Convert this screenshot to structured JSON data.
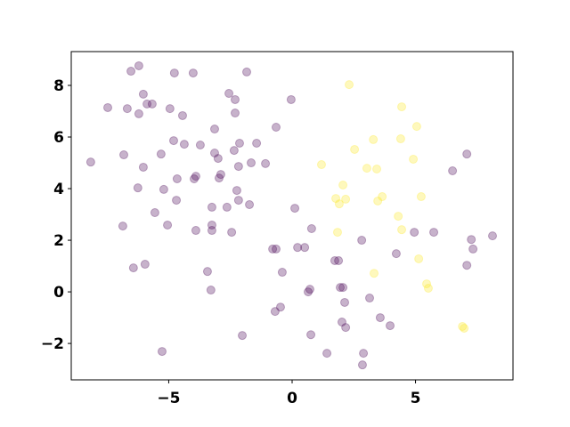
{
  "chart_data": {
    "type": "scatter",
    "xlim": [
      -8.95,
      8.95
    ],
    "ylim": [
      -3.41,
      9.31
    ],
    "xticks": [
      {
        "value": -5,
        "label": "−5"
      },
      0,
      5
    ],
    "yticks": [
      {
        "value": -2,
        "label": "−2"
      },
      0,
      2,
      4,
      6,
      8
    ],
    "alpha": 0.3,
    "series": [
      {
        "color": "#440154",
        "x": [
          -8.16,
          -7.47,
          -6.53,
          -6.21,
          -6.68,
          -6.03,
          -5.88,
          -5.67,
          -6.21,
          -6.82,
          -6.03,
          -6.25,
          -6.86,
          -5.56,
          -5.31,
          -5.2,
          -5.05,
          -4.95,
          -4.77,
          -4.01,
          -4.44,
          -4.8,
          -4.37,
          -4.66,
          -4.69,
          -3.97,
          -3.9,
          -3.9,
          -3.72,
          -3.14,
          -3.14,
          -3.0,
          -2.89,
          -2.96,
          -3.25,
          -3.25,
          -3.25,
          -3.43,
          -3.29,
          -6.43,
          -5.96,
          -5.27,
          -2.56,
          -2.31,
          -1.84,
          -2.31,
          -2.35,
          -2.13,
          -1.44,
          -1.66,
          -1.08,
          -2.17,
          -2.24,
          -2.17,
          -2.64,
          -2.45,
          -1.73,
          -0.65,
          -0.04,
          -2.02,
          -0.79,
          -0.65,
          -0.4,
          -0.69,
          -0.47,
          0.11,
          0.22,
          0.51,
          0.79,
          0.65,
          0.72,
          0.76,
          1.41,
          1.73,
          1.88,
          1.95,
          2.06,
          2.13,
          2.02,
          2.17,
          2.82,
          2.89,
          2.85,
          3.14,
          3.57,
          3.97,
          4.22,
          4.95,
          5.74,
          6.5,
          7.08,
          7.26,
          7.33,
          7.08,
          8.12
        ],
        "values": [
          5.03,
          7.14,
          8.55,
          8.76,
          7.1,
          7.66,
          7.28,
          7.28,
          6.9,
          5.31,
          4.83,
          4.03,
          2.55,
          3.07,
          5.34,
          3.97,
          2.59,
          7.1,
          8.48,
          8.48,
          6.83,
          5.86,
          5.72,
          4.38,
          3.55,
          4.38,
          4.48,
          2.38,
          5.69,
          6.31,
          5.38,
          5.17,
          4.55,
          4.41,
          3.28,
          2.59,
          2.38,
          0.79,
          0.07,
          0.93,
          1.07,
          -2.31,
          7.69,
          7.45,
          8.52,
          6.93,
          5.48,
          5.76,
          5.76,
          5.0,
          4.97,
          4.86,
          3.93,
          3.55,
          3.28,
          2.31,
          3.38,
          6.38,
          7.45,
          -1.69,
          1.66,
          1.66,
          0.76,
          -0.76,
          -0.59,
          3.24,
          1.72,
          1.72,
          2.45,
          0.0,
          0.1,
          -1.66,
          -2.38,
          1.21,
          1.21,
          0.17,
          0.17,
          -0.41,
          -1.17,
          -1.38,
          2.0,
          -2.38,
          -2.83,
          -0.24,
          -1.0,
          -1.31,
          1.48,
          2.31,
          2.31,
          4.69,
          5.34,
          2.03,
          1.66,
          1.03,
          2.17
        ]
      },
      {
        "color": "#fde725",
        "x": [
          2.31,
          4.44,
          5.05,
          3.29,
          4.4,
          2.53,
          1.19,
          3.03,
          3.43,
          4.91,
          2.06,
          1.77,
          1.91,
          2.17,
          3.65,
          3.47,
          5.23,
          4.3,
          4.44,
          1.84,
          5.13,
          3.32,
          5.45,
          5.52,
          6.9,
          6.97
        ],
        "values": [
          8.03,
          7.17,
          6.41,
          5.9,
          5.93,
          5.52,
          4.93,
          4.79,
          4.76,
          5.14,
          4.14,
          3.62,
          3.41,
          3.59,
          3.69,
          3.52,
          3.69,
          2.93,
          2.41,
          2.31,
          1.28,
          0.72,
          0.31,
          0.14,
          -1.34,
          -1.41
        ]
      }
    ]
  }
}
